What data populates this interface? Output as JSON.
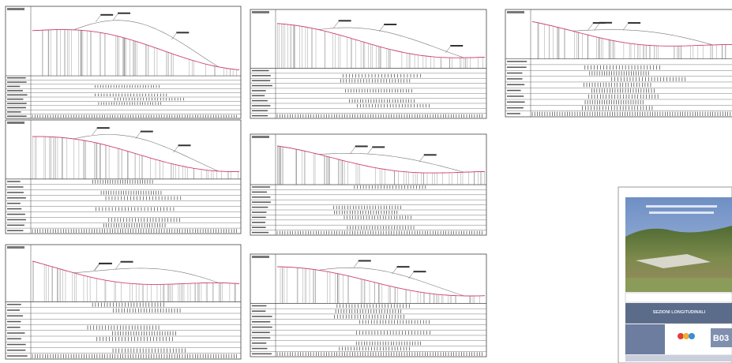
{
  "cover": {
    "section_title": "SEZIONI LONGITUDINALI",
    "code": "B03"
  }
}
